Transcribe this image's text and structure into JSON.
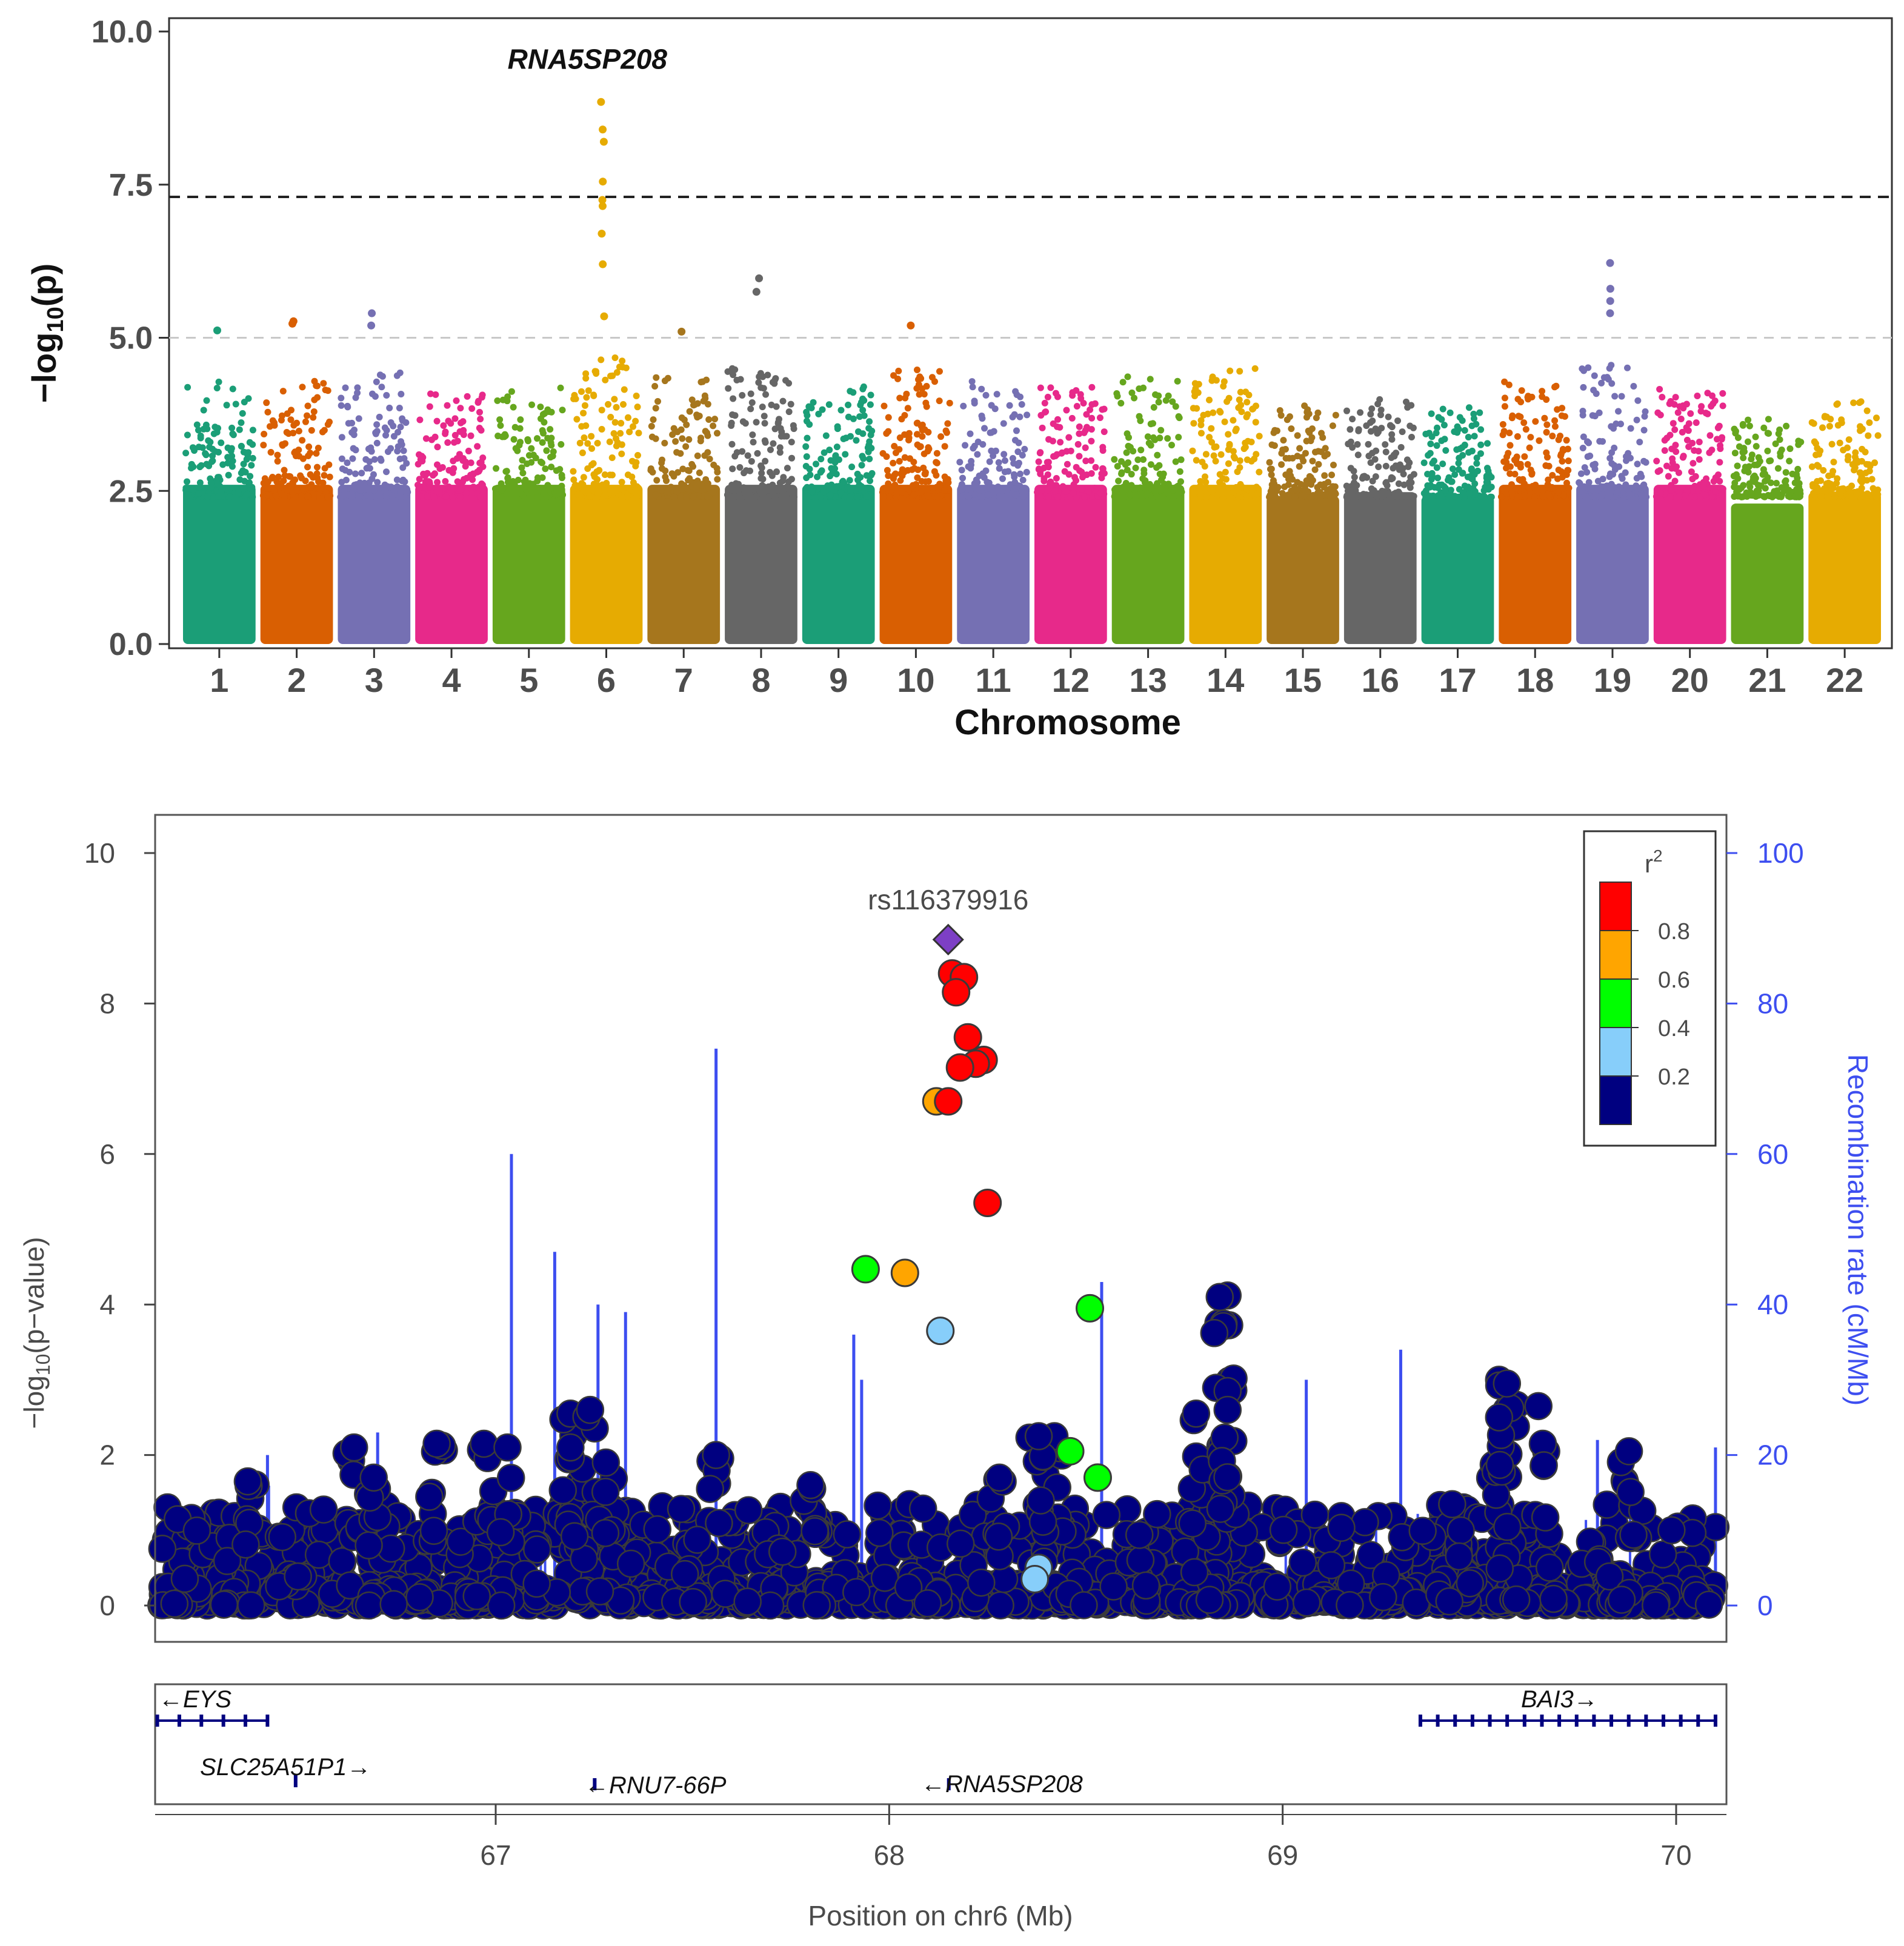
{
  "chart_data": [
    {
      "type": "scatter",
      "subtype": "manhattan",
      "xlabel": "Chromosome",
      "ylabel": "-log10(p)",
      "ylim": [
        0,
        10
      ],
      "yticks": [
        "0.0",
        "2.5",
        "5.0",
        "7.5",
        "10.0"
      ],
      "chromosomes": [
        "1",
        "2",
        "3",
        "4",
        "5",
        "6",
        "7",
        "8",
        "9",
        "10",
        "11",
        "12",
        "13",
        "14",
        "15",
        "16",
        "17",
        "18",
        "19",
        "20",
        "21",
        "22"
      ],
      "colors": [
        "#1b9e77",
        "#d95f02",
        "#7570b3",
        "#e7298a",
        "#66a61e",
        "#e6ab02",
        "#a6761d",
        "#666666"
      ],
      "background_max": [
        4.3,
        4.3,
        4.6,
        4.2,
        4.2,
        4.7,
        4.4,
        4.5,
        4.3,
        4.5,
        4.3,
        4.2,
        4.4,
        4.5,
        3.9,
        4.0,
        3.9,
        4.3,
        4.6,
        4.2,
        3.7,
        4.0
      ],
      "genome_wide_line": 7.3,
      "suggestive_line": 5.0,
      "top_hits": [
        {
          "chr": "6",
          "values": [
            8.85,
            8.4,
            8.2,
            7.55,
            7.25,
            7.15,
            6.7,
            6.2,
            5.35
          ]
        },
        {
          "chr": "8",
          "values": [
            5.97,
            5.75
          ]
        },
        {
          "chr": "19",
          "values": [
            6.22,
            5.8,
            5.6,
            5.4
          ]
        },
        {
          "chr": "3",
          "values": [
            5.4,
            5.2
          ]
        },
        {
          "chr": "2",
          "values": [
            5.27,
            5.23
          ]
        },
        {
          "chr": "1",
          "values": [
            5.12
          ]
        },
        {
          "chr": "7",
          "values": [
            5.1
          ]
        },
        {
          "chr": "10",
          "values": [
            5.2
          ]
        }
      ],
      "annotation": "RNA5SP208"
    },
    {
      "type": "scatter",
      "subtype": "regional-association",
      "title": "",
      "lead_snp": {
        "label": "rs116379916",
        "position": 68.15,
        "value": 8.85
      },
      "xlabel": "Position on chr6 (Mb)",
      "ylabel": "-log10(p-value)",
      "y2label": "Recombination rate (cM/Mb)",
      "xlim": [
        66.14,
        70.12
      ],
      "ylim": [
        0,
        10.5
      ],
      "y2lim": [
        0,
        105
      ],
      "xticks": [
        "67",
        "68",
        "69",
        "70"
      ],
      "yticks": [
        "0",
        "2",
        "4",
        "6",
        "8",
        "10"
      ],
      "y2ticks": [
        "0",
        "20",
        "40",
        "60",
        "80",
        "100"
      ],
      "legend": {
        "title": "r",
        "title_sup": "2",
        "breaks": [
          "0.8",
          "0.6",
          "0.4",
          "0.2"
        ],
        "colors": [
          "#ff0000",
          "#ffa500",
          "#00ff00",
          "#87cefa",
          "#000080"
        ]
      },
      "colored_points": [
        {
          "x": 68.16,
          "y": 8.4,
          "r2": "high"
        },
        {
          "x": 68.19,
          "y": 8.35,
          "r2": "high"
        },
        {
          "x": 68.17,
          "y": 8.15,
          "r2": "high"
        },
        {
          "x": 68.2,
          "y": 7.55,
          "r2": "high"
        },
        {
          "x": 68.24,
          "y": 7.25,
          "r2": "high"
        },
        {
          "x": 68.22,
          "y": 7.2,
          "r2": "high"
        },
        {
          "x": 68.18,
          "y": 7.15,
          "r2": "high"
        },
        {
          "x": 68.12,
          "y": 6.7,
          "r2": "mid"
        },
        {
          "x": 68.15,
          "y": 6.7,
          "r2": "high"
        },
        {
          "x": 68.25,
          "y": 5.35,
          "r2": "high"
        },
        {
          "x": 67.94,
          "y": 4.47,
          "r2": "low"
        },
        {
          "x": 68.04,
          "y": 4.42,
          "r2": "mid"
        },
        {
          "x": 68.51,
          "y": 3.95,
          "r2": "low"
        },
        {
          "x": 68.13,
          "y": 3.65,
          "r2": "vlow"
        },
        {
          "x": 68.46,
          "y": 2.05,
          "r2": "low"
        },
        {
          "x": 68.53,
          "y": 1.7,
          "r2": "low"
        },
        {
          "x": 68.38,
          "y": 0.5,
          "r2": "vlow"
        },
        {
          "x": 68.37,
          "y": 0.35,
          "r2": "vlow"
        }
      ],
      "background_peaks": [
        {
          "x": 66.85,
          "y": 2.15
        },
        {
          "x": 66.97,
          "y": 2.15
        },
        {
          "x": 67.03,
          "y": 2.1
        },
        {
          "x": 67.19,
          "y": 2.55
        },
        {
          "x": 67.24,
          "y": 2.6
        },
        {
          "x": 67.19,
          "y": 2.1
        },
        {
          "x": 67.28,
          "y": 1.9
        },
        {
          "x": 67.56,
          "y": 2.0
        },
        {
          "x": 67.8,
          "y": 1.6
        },
        {
          "x": 68.28,
          "y": 1.7
        },
        {
          "x": 68.42,
          "y": 2.25
        },
        {
          "x": 68.38,
          "y": 2.25
        },
        {
          "x": 68.78,
          "y": 2.55
        },
        {
          "x": 68.86,
          "y": 4.12
        },
        {
          "x": 68.84,
          "y": 4.1
        },
        {
          "x": 68.86,
          "y": 2.85
        },
        {
          "x": 68.86,
          "y": 2.6
        },
        {
          "x": 69.55,
          "y": 3.0
        },
        {
          "x": 69.57,
          "y": 2.95
        },
        {
          "x": 69.55,
          "y": 2.5
        },
        {
          "x": 69.65,
          "y": 2.65
        },
        {
          "x": 69.88,
          "y": 2.05
        },
        {
          "x": 66.64,
          "y": 2.1
        },
        {
          "x": 66.37,
          "y": 1.65
        },
        {
          "x": 66.69,
          "y": 1.7
        }
      ],
      "recombination_spikes": [
        {
          "x": 66.42,
          "rate": 20
        },
        {
          "x": 66.7,
          "rate": 23
        },
        {
          "x": 67.04,
          "rate": 60
        },
        {
          "x": 67.15,
          "rate": 47
        },
        {
          "x": 67.26,
          "rate": 40
        },
        {
          "x": 67.33,
          "rate": 39
        },
        {
          "x": 67.56,
          "rate": 74
        },
        {
          "x": 67.91,
          "rate": 36
        },
        {
          "x": 67.93,
          "rate": 30
        },
        {
          "x": 68.54,
          "rate": 43
        },
        {
          "x": 69.06,
          "rate": 30
        },
        {
          "x": 69.3,
          "rate": 34
        },
        {
          "x": 69.8,
          "rate": 22
        },
        {
          "x": 70.1,
          "rate": 21
        }
      ],
      "genes": [
        {
          "name": "EYS",
          "direction": "left",
          "start": 66.14,
          "end": 66.42
        },
        {
          "name": "SLC25A51P1",
          "direction": "right",
          "start": 66.49,
          "end": 66.5
        },
        {
          "name": "RNU7-66P",
          "direction": "left",
          "start": 67.25,
          "end": 67.27
        },
        {
          "name": "RNA5SP208",
          "direction": "left",
          "start": 68.15,
          "end": 68.16
        },
        {
          "name": "BAI3",
          "direction": "right",
          "start": 69.35,
          "end": 70.1
        }
      ]
    }
  ]
}
